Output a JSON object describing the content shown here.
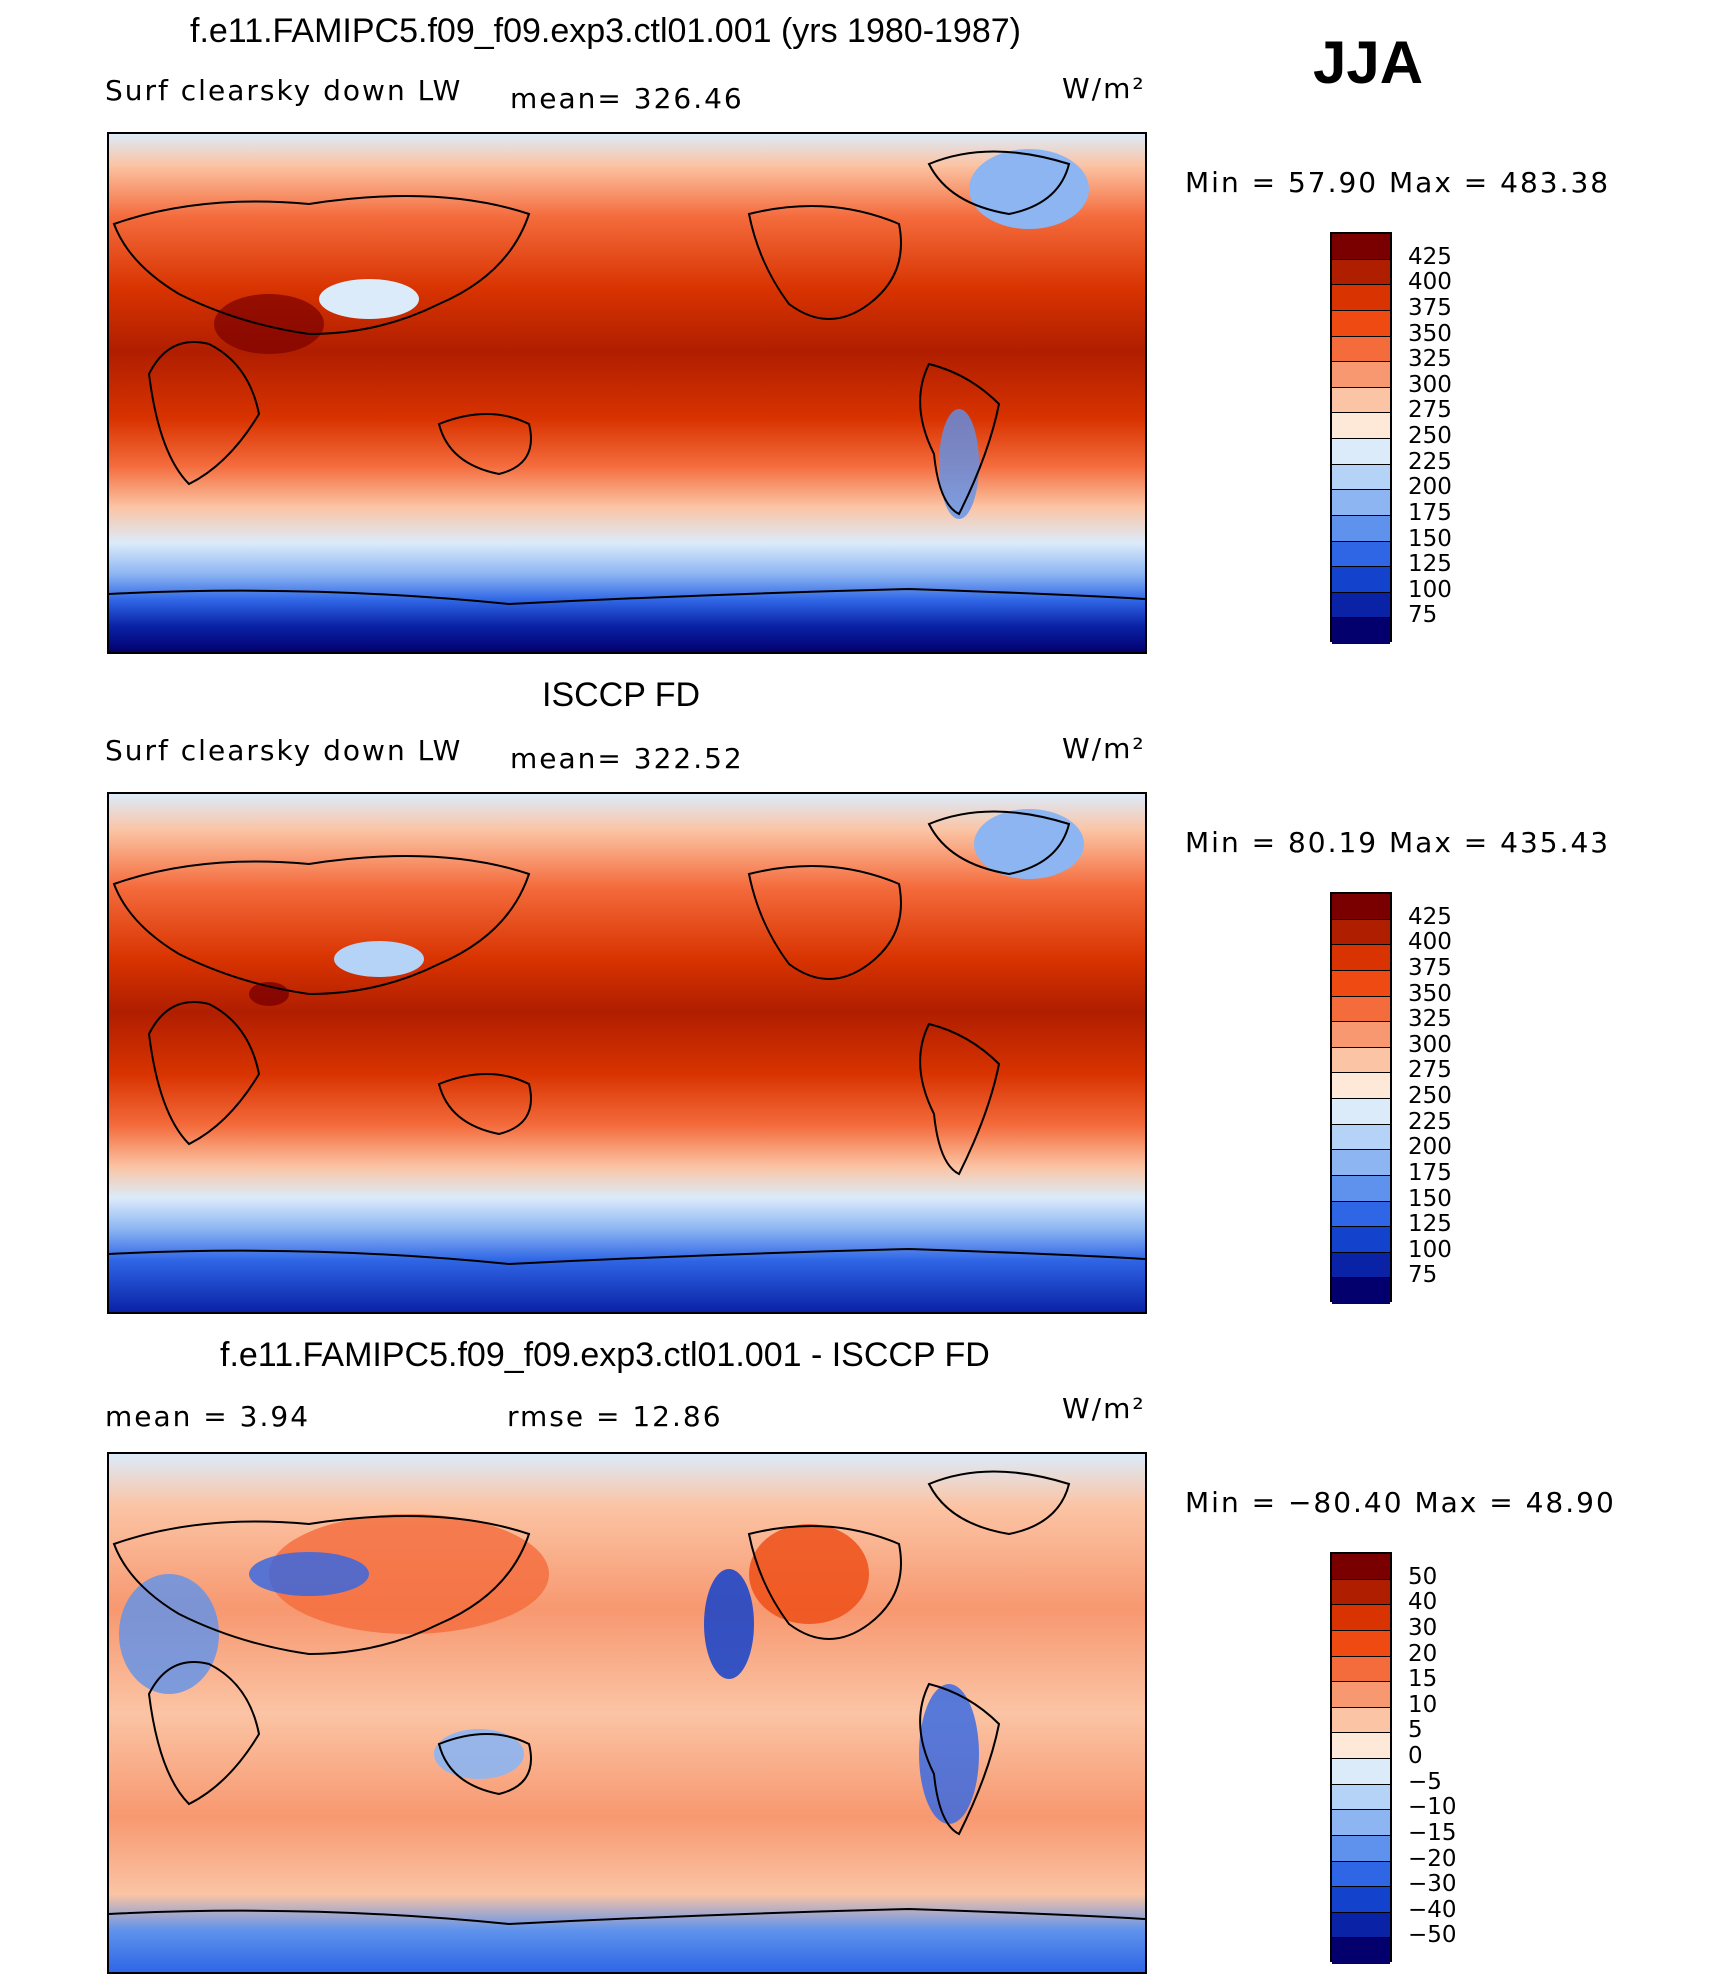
{
  "season": "JJA",
  "panels": [
    {
      "title": "f.e11.FAMIPC5.f09_f09.exp3.ctl01.001 (yrs 1980-1987)",
      "variable": "Surf clearsky down LW",
      "stat_left": "",
      "mean_text": "mean= 326.46",
      "units": "W/m²",
      "minmax": "Min =   57.90 Max = 483.38",
      "palette": "abs"
    },
    {
      "title": "ISCCP FD",
      "variable": "Surf clearsky down LW",
      "stat_left": "",
      "mean_text": "mean= 322.52",
      "units": "W/m²",
      "minmax": "Min =   80.19 Max = 435.43",
      "palette": "abs"
    },
    {
      "title": "f.e11.FAMIPC5.f09_f09.exp3.ctl01.001 - ISCCP FD",
      "variable": "mean =    3.94",
      "stat_left": "",
      "mean_text": "rmse =    12.86",
      "units": "W/m²",
      "minmax": "Min = −80.40 Max =   48.90",
      "palette": "diff"
    }
  ],
  "colorbars": {
    "abs": {
      "labels": [
        "425",
        "400",
        "375",
        "350",
        "325",
        "300",
        "275",
        "250",
        "225",
        "200",
        "175",
        "150",
        "125",
        "100",
        "75"
      ],
      "colors": [
        "#7a0000",
        "#b01e00",
        "#d83300",
        "#ee4a12",
        "#f46b3c",
        "#f79870",
        "#fbc4a4",
        "#fee8d8",
        "#dbebfa",
        "#b5d2f7",
        "#8cb5f2",
        "#5e92ec",
        "#2f66e6",
        "#1342cd",
        "#0a22a6",
        "#03006e"
      ]
    },
    "diff": {
      "labels": [
        "50",
        "40",
        "30",
        "20",
        "15",
        "10",
        "5",
        "0",
        "−5",
        "−10",
        "−15",
        "−20",
        "−30",
        "−40",
        "−50"
      ],
      "colors": [
        "#7a0000",
        "#b01e00",
        "#d83300",
        "#ee4a12",
        "#f46b3c",
        "#f79870",
        "#fbc4a4",
        "#fee8d8",
        "#dbebfa",
        "#b5d2f7",
        "#8cb5f2",
        "#5e92ec",
        "#2f66e6",
        "#1342cd",
        "#0a22a6",
        "#03006e"
      ]
    }
  }
}
